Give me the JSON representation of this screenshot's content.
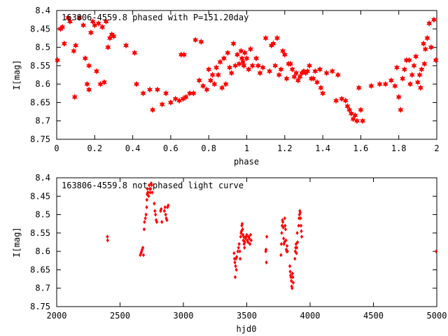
{
  "chart_data": [
    {
      "type": "scatter",
      "title": "163806-4559.8 phased with P=151.20day",
      "xlabel": "phase",
      "ylabel": "I[mag]",
      "xlim": [
        0,
        2
      ],
      "ylim": [
        8.4,
        8.75
      ],
      "y_inverted": true,
      "grid": false,
      "marker_color": "#ff0000",
      "marker": "filled-star",
      "x_ticks": [
        "0",
        "0.2",
        "0.4",
        "0.6",
        "0.8",
        "1",
        "1.2",
        "1.4",
        "1.6",
        "1.8",
        "2"
      ],
      "x_tick_values": [
        0,
        0.2,
        0.4,
        0.6,
        0.8,
        1.0,
        1.2,
        1.4,
        1.6,
        1.8,
        2.0
      ],
      "y_ticks": [
        "8.4",
        "8.45",
        "8.5",
        "8.55",
        "8.6",
        "8.65",
        "8.7",
        "8.75"
      ],
      "y_tick_values": [
        8.4,
        8.45,
        8.5,
        8.55,
        8.6,
        8.65,
        8.7,
        8.75
      ],
      "points": [
        [
          0.004,
          8.535
        ],
        [
          0.02,
          8.45
        ],
        [
          0.03,
          8.445
        ],
        [
          0.04,
          8.49
        ],
        [
          0.06,
          8.42
        ],
        [
          0.07,
          8.43
        ],
        [
          0.09,
          8.51
        ],
        [
          0.095,
          8.635
        ],
        [
          0.1,
          8.495
        ],
        [
          0.12,
          8.42
        ],
        [
          0.14,
          8.44
        ],
        [
          0.15,
          8.53
        ],
        [
          0.16,
          8.6
        ],
        [
          0.17,
          8.615
        ],
        [
          0.17,
          8.55
        ],
        [
          0.18,
          8.46
        ],
        [
          0.19,
          8.43
        ],
        [
          0.2,
          8.44
        ],
        [
          0.21,
          8.565
        ],
        [
          0.22,
          8.435
        ],
        [
          0.23,
          8.6
        ],
        [
          0.24,
          8.445
        ],
        [
          0.25,
          8.595
        ],
        [
          0.26,
          8.43
        ],
        [
          0.27,
          8.5
        ],
        [
          0.28,
          8.475
        ],
        [
          0.29,
          8.465
        ],
        [
          0.3,
          8.47
        ],
        [
          0.365,
          8.495
        ],
        [
          0.41,
          8.515
        ],
        [
          0.42,
          8.6
        ],
        [
          0.455,
          8.625
        ],
        [
          0.49,
          8.615
        ],
        [
          0.505,
          8.67
        ],
        [
          0.53,
          8.615
        ],
        [
          0.555,
          8.655
        ],
        [
          0.575,
          8.625
        ],
        [
          0.6,
          8.65
        ],
        [
          0.625,
          8.64
        ],
        [
          0.645,
          8.645
        ],
        [
          0.655,
          8.52
        ],
        [
          0.665,
          8.64
        ],
        [
          0.67,
          8.52
        ],
        [
          0.68,
          8.635
        ],
        [
          0.7,
          8.625
        ],
        [
          0.72,
          8.625
        ],
        [
          0.73,
          8.48
        ],
        [
          0.75,
          8.59
        ],
        [
          0.76,
          8.485
        ],
        [
          0.77,
          8.605
        ],
        [
          0.79,
          8.615
        ],
        [
          0.8,
          8.56
        ],
        [
          0.81,
          8.59
        ],
        [
          0.82,
          8.575
        ],
        [
          0.83,
          8.6
        ],
        [
          0.84,
          8.555
        ],
        [
          0.85,
          8.575
        ],
        [
          0.86,
          8.54
        ],
        [
          0.87,
          8.61
        ],
        [
          0.88,
          8.53
        ],
        [
          0.89,
          8.6
        ],
        [
          0.9,
          8.515
        ],
        [
          0.91,
          8.555
        ],
        [
          0.92,
          8.57
        ],
        [
          0.93,
          8.49
        ],
        [
          0.94,
          8.55
        ],
        [
          0.95,
          8.52
        ],
        [
          0.96,
          8.545
        ],
        [
          0.97,
          8.51
        ],
        [
          0.975,
          8.53
        ],
        [
          0.98,
          8.54
        ],
        [
          0.985,
          8.55
        ],
        [
          0.99,
          8.515
        ],
        [
          1.0,
          8.53
        ],
        [
          1.01,
          8.56
        ],
        [
          1.02,
          8.505
        ],
        [
          1.03,
          8.55
        ],
        [
          1.05,
          8.53
        ],
        [
          1.06,
          8.55
        ],
        [
          1.07,
          8.57
        ],
        [
          1.085,
          8.555
        ],
        [
          1.1,
          8.475
        ],
        [
          1.12,
          8.565
        ],
        [
          1.13,
          8.495
        ],
        [
          1.14,
          8.49
        ],
        [
          1.15,
          8.55
        ],
        [
          1.16,
          8.475
        ],
        [
          1.17,
          8.575
        ],
        [
          1.18,
          8.56
        ],
        [
          1.19,
          8.51
        ],
        [
          1.2,
          8.52
        ],
        [
          1.21,
          8.585
        ],
        [
          1.22,
          8.545
        ],
        [
          1.23,
          8.545
        ],
        [
          1.24,
          8.56
        ],
        [
          1.25,
          8.58
        ],
        [
          1.26,
          8.57
        ],
        [
          1.27,
          8.59
        ],
        [
          1.28,
          8.58
        ],
        [
          1.29,
          8.57
        ],
        [
          1.3,
          8.565
        ],
        [
          1.31,
          8.57
        ],
        [
          1.32,
          8.565
        ],
        [
          1.33,
          8.55
        ],
        [
          1.34,
          8.585
        ],
        [
          1.35,
          8.585
        ],
        [
          1.36,
          8.565
        ],
        [
          1.37,
          8.595
        ],
        [
          1.385,
          8.56
        ],
        [
          1.39,
          8.61
        ],
        [
          1.4,
          8.625
        ],
        [
          1.42,
          8.57
        ],
        [
          1.45,
          8.565
        ],
        [
          1.47,
          8.645
        ],
        [
          1.48,
          8.575
        ],
        [
          1.5,
          8.64
        ],
        [
          1.52,
          8.645
        ],
        [
          1.53,
          8.66
        ],
        [
          1.54,
          8.67
        ],
        [
          1.55,
          8.68
        ],
        [
          1.56,
          8.695
        ],
        [
          1.57,
          8.685
        ],
        [
          1.58,
          8.7
        ],
        [
          1.59,
          8.61
        ],
        [
          1.6,
          8.67
        ],
        [
          1.61,
          8.7
        ],
        [
          1.655,
          8.605
        ],
        [
          1.7,
          8.6
        ],
        [
          1.73,
          8.6
        ],
        [
          1.76,
          8.59
        ],
        [
          1.78,
          8.605
        ],
        [
          1.79,
          8.555
        ],
        [
          1.8,
          8.635
        ],
        [
          1.81,
          8.67
        ],
        [
          1.82,
          8.585
        ],
        [
          1.83,
          8.56
        ],
        [
          1.84,
          8.535
        ],
        [
          1.855,
          8.535
        ],
        [
          1.86,
          8.6
        ],
        [
          1.87,
          8.575
        ],
        [
          1.88,
          8.55
        ],
        [
          1.89,
          8.525
        ],
        [
          1.9,
          8.595
        ],
        [
          1.91,
          8.575
        ],
        [
          1.915,
          8.61
        ],
        [
          1.92,
          8.56
        ],
        [
          1.93,
          8.49
        ],
        [
          1.935,
          8.545
        ],
        [
          1.94,
          8.505
        ],
        [
          1.95,
          8.475
        ],
        [
          1.96,
          8.435
        ],
        [
          1.97,
          8.5
        ],
        [
          1.985,
          8.425
        ],
        [
          1.995,
          8.535
        ]
      ]
    },
    {
      "type": "scatter",
      "title": "163806-4559.8 not phased light curve",
      "xlabel": "hjd0",
      "ylabel": "I[mag]",
      "xlim": [
        2000,
        5000
      ],
      "ylim": [
        8.4,
        8.75
      ],
      "y_inverted": true,
      "grid": false,
      "marker_color": "#ff0000",
      "marker": "filled-diamond",
      "x_ticks": [
        "2000",
        "2500",
        "3000",
        "3500",
        "4000",
        "4500",
        "5000"
      ],
      "x_tick_values": [
        2000,
        2500,
        3000,
        3500,
        4000,
        4500,
        5000
      ],
      "y_ticks": [
        "8.4",
        "8.45",
        "8.5",
        "8.55",
        "8.6",
        "8.65",
        "8.7",
        "8.75"
      ],
      "y_tick_values": [
        8.4,
        8.45,
        8.5,
        8.55,
        8.6,
        8.65,
        8.7,
        8.75
      ],
      "points": [
        [
          2400,
          8.56
        ],
        [
          2402,
          8.57
        ],
        [
          2660,
          8.61
        ],
        [
          2665,
          8.605
        ],
        [
          2670,
          8.6
        ],
        [
          2675,
          8.595
        ],
        [
          2680,
          8.59
        ],
        [
          2685,
          8.61
        ],
        [
          2690,
          8.54
        ],
        [
          2693,
          8.52
        ],
        [
          2700,
          8.51
        ],
        [
          2705,
          8.5
        ],
        [
          2710,
          8.48
        ],
        [
          2712,
          8.46
        ],
        [
          2714,
          8.445
        ],
        [
          2716,
          8.43
        ],
        [
          2718,
          8.44
        ],
        [
          2722,
          8.44
        ],
        [
          2726,
          8.45
        ],
        [
          2730,
          8.42
        ],
        [
          2734,
          8.43
        ],
        [
          2738,
          8.44
        ],
        [
          2742,
          8.43
        ],
        [
          2746,
          8.415
        ],
        [
          2750,
          8.42
        ],
        [
          2754,
          8.44
        ],
        [
          2770,
          8.47
        ],
        [
          2775,
          8.49
        ],
        [
          2780,
          8.5
        ],
        [
          2785,
          8.515
        ],
        [
          2790,
          8.52
        ],
        [
          2820,
          8.49
        ],
        [
          2825,
          8.485
        ],
        [
          2830,
          8.52
        ],
        [
          2850,
          8.49
        ],
        [
          2855,
          8.48
        ],
        [
          2860,
          8.5
        ],
        [
          2865,
          8.51
        ],
        [
          2870,
          8.515
        ],
        [
          2875,
          8.48
        ],
        [
          2880,
          8.475
        ],
        [
          3400,
          8.605
        ],
        [
          3403,
          8.62
        ],
        [
          3406,
          8.63
        ],
        [
          3409,
          8.67
        ],
        [
          3412,
          8.64
        ],
        [
          3415,
          8.62
        ],
        [
          3418,
          8.65
        ],
        [
          3421,
          8.615
        ],
        [
          3430,
          8.6
        ],
        [
          3435,
          8.59
        ],
        [
          3440,
          8.58
        ],
        [
          3445,
          8.6
        ],
        [
          3448,
          8.62
        ],
        [
          3452,
          8.56
        ],
        [
          3455,
          8.55
        ],
        [
          3458,
          8.545
        ],
        [
          3461,
          8.53
        ],
        [
          3464,
          8.525
        ],
        [
          3467,
          8.54
        ],
        [
          3470,
          8.555
        ],
        [
          3473,
          8.57
        ],
        [
          3476,
          8.56
        ],
        [
          3479,
          8.58
        ],
        [
          3482,
          8.59
        ],
        [
          3485,
          8.575
        ],
        [
          3490,
          8.565
        ],
        [
          3495,
          8.56
        ],
        [
          3500,
          8.555
        ],
        [
          3505,
          8.57
        ],
        [
          3510,
          8.575
        ],
        [
          3515,
          8.56
        ],
        [
          3520,
          8.565
        ],
        [
          3525,
          8.58
        ],
        [
          3530,
          8.555
        ],
        [
          3535,
          8.57
        ],
        [
          3650,
          8.6
        ],
        [
          3652,
          8.595
        ],
        [
          3655,
          8.63
        ],
        [
          3658,
          8.56
        ],
        [
          3770,
          8.61
        ],
        [
          3773,
          8.58
        ],
        [
          3776,
          8.55
        ],
        [
          3779,
          8.53
        ],
        [
          3782,
          8.515
        ],
        [
          3785,
          8.52
        ],
        [
          3788,
          8.535
        ],
        [
          3791,
          8.565
        ],
        [
          3794,
          8.58
        ],
        [
          3797,
          8.575
        ],
        [
          3800,
          8.51
        ],
        [
          3803,
          8.53
        ],
        [
          3806,
          8.54
        ],
        [
          3809,
          8.57
        ],
        [
          3812,
          8.595
        ],
        [
          3815,
          8.6
        ],
        [
          3818,
          8.585
        ],
        [
          3821,
          8.6
        ],
        [
          3840,
          8.64
        ],
        [
          3843,
          8.655
        ],
        [
          3846,
          8.665
        ],
        [
          3849,
          8.67
        ],
        [
          3852,
          8.68
        ],
        [
          3855,
          8.695
        ],
        [
          3858,
          8.7
        ],
        [
          3861,
          8.66
        ],
        [
          3864,
          8.67
        ],
        [
          3867,
          8.685
        ],
        [
          3880,
          8.62
        ],
        [
          3883,
          8.6
        ],
        [
          3886,
          8.59
        ],
        [
          3889,
          8.58
        ],
        [
          3892,
          8.605
        ],
        [
          3895,
          8.59
        ],
        [
          3898,
          8.55
        ],
        [
          3901,
          8.575
        ],
        [
          3910,
          8.53
        ],
        [
          3913,
          8.51
        ],
        [
          3916,
          8.5
        ],
        [
          3919,
          8.49
        ],
        [
          3922,
          8.495
        ],
        [
          3925,
          8.51
        ],
        [
          3928,
          8.53
        ],
        [
          3931,
          8.545
        ],
        [
          3934,
          8.56
        ],
        [
          4995,
          8.6
        ]
      ]
    }
  ]
}
